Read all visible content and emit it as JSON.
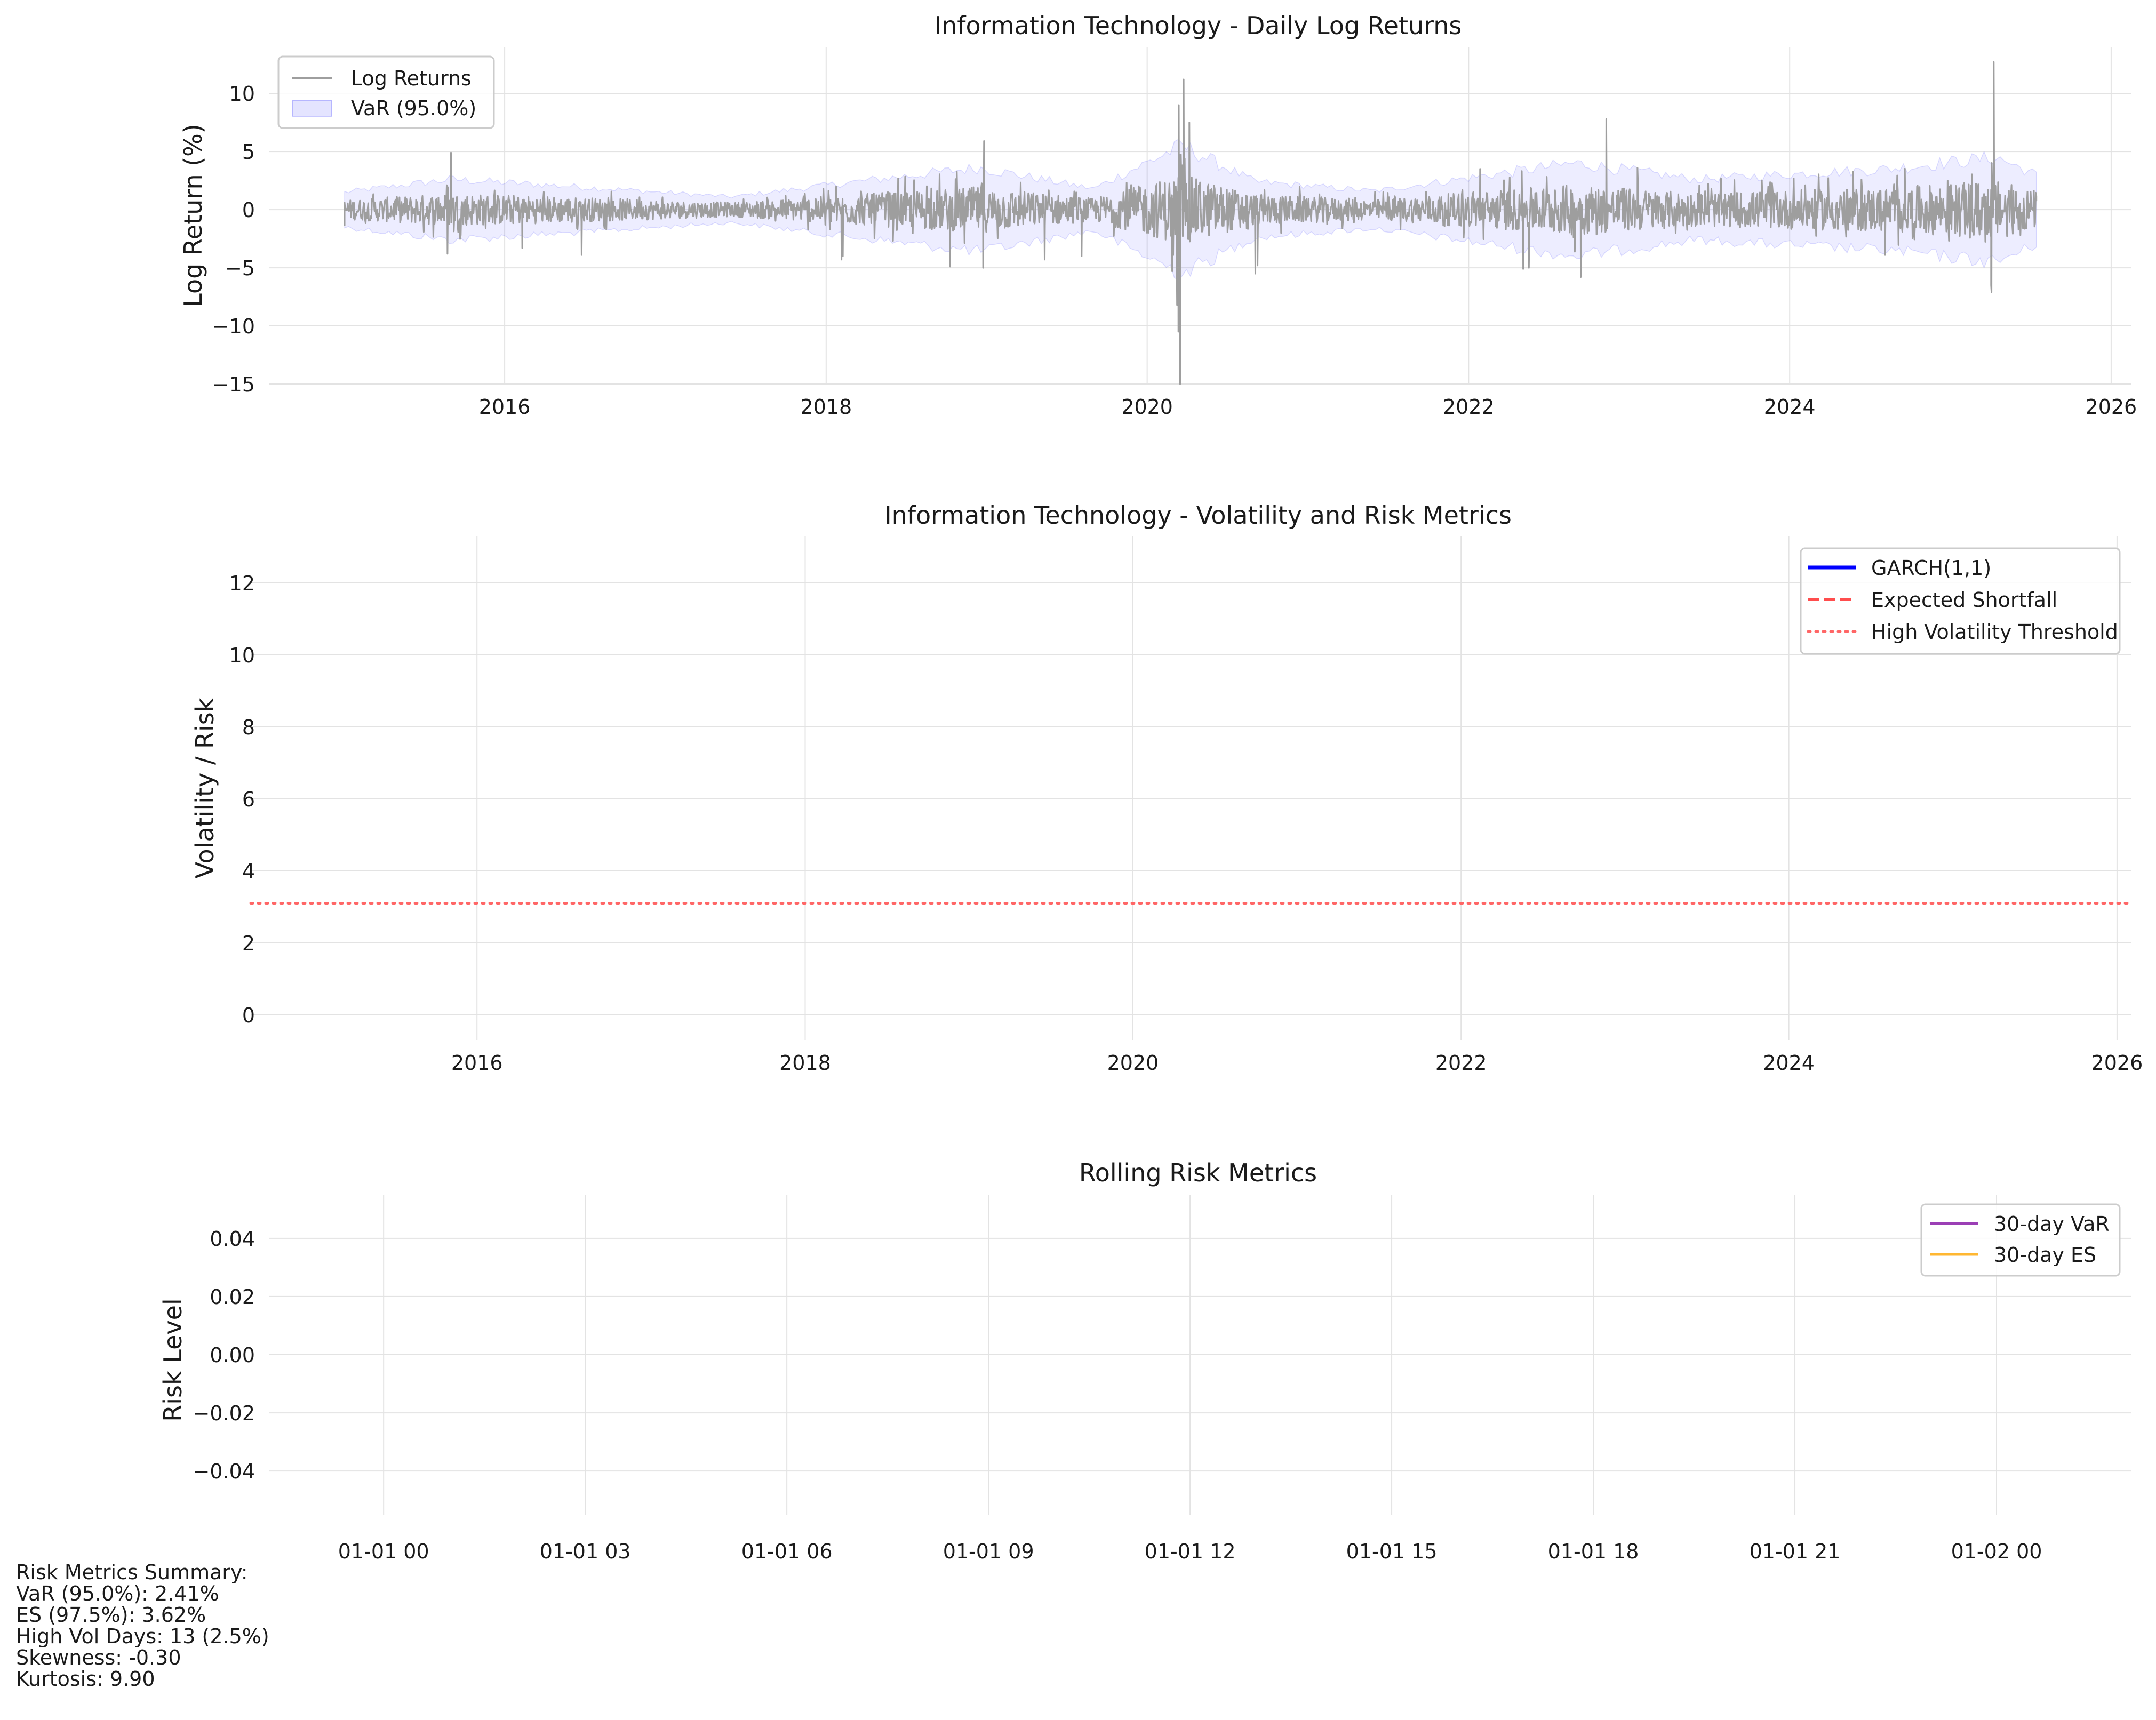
{
  "chart_data": [
    {
      "type": "line",
      "title": "Information Technology - Daily Log Returns",
      "xlabel": "",
      "ylabel": "Log Return (%)",
      "xlim": [
        "2014-07-15",
        "2026-02-15"
      ],
      "ylim": [
        -15,
        14
      ],
      "x_ticks": [
        "2016",
        "2018",
        "2020",
        "2022",
        "2024",
        "2026"
      ],
      "y_ticks": [
        10,
        5,
        0,
        -5,
        -10,
        -15
      ],
      "grid": true,
      "legend_position": "top-left",
      "series": [
        {
          "name": "Log Returns",
          "color": "#9e9e9e",
          "style": "line",
          "x": [
            "2015-01-02",
            "2015-08-24",
            "2015-09-01",
            "2016-02-10",
            "2016-06-24",
            "2018-02-05",
            "2018-02-08",
            "2018-10-10",
            "2018-12-24",
            "2018-12-26",
            "2019-05-13",
            "2019-08-05",
            "2020-02-27",
            "2020-03-09",
            "2020-03-12",
            "2020-03-13",
            "2020-03-16",
            "2020-03-24",
            "2020-04-06",
            "2020-09-03",
            "2020-09-08",
            "2022-01-27",
            "2022-05-05",
            "2022-05-18",
            "2022-09-13",
            "2022-11-10",
            "2023-01-20",
            "2024-08-05",
            "2025-04-03",
            "2025-04-04",
            "2025-04-09",
            "2025-07-15"
          ],
          "y": [
            -1.4,
            -3.8,
            4.9,
            -3.3,
            -3.9,
            -4.3,
            -4.0,
            -4.9,
            -5.0,
            5.9,
            -4.3,
            -4.0,
            -5.3,
            -8.2,
            -10.5,
            9.0,
            -15.0,
            11.2,
            7.5,
            -5.5,
            -4.8,
            3.5,
            -5.1,
            -5.0,
            -5.8,
            7.8,
            3.6,
            -3.9,
            -6.5,
            -7.1,
            12.7,
            0.8
          ]
        },
        {
          "name": "VaR (95.0%)",
          "color": "#4d4dff",
          "style": "band",
          "x": [
            "2015-01-02",
            "2015-09-01",
            "2016-06-01",
            "2017-06-01",
            "2018-02-15",
            "2018-12-15",
            "2019-09-01",
            "2020-03-20",
            "2020-09-01",
            "2021-06-01",
            "2022-09-01",
            "2023-06-01",
            "2024-08-15",
            "2025-04-15",
            "2025-07-15"
          ],
          "upper": [
            1.5,
            2.6,
            2.0,
            1.1,
            2.3,
            3.6,
            1.8,
            5.5,
            2.4,
            1.6,
            4.0,
            2.6,
            3.5,
            4.5,
            3.0
          ],
          "lower": [
            -1.5,
            -2.6,
            -2.0,
            -1.1,
            -2.3,
            -3.6,
            -1.8,
            -5.5,
            -2.4,
            -1.6,
            -4.0,
            -2.6,
            -3.5,
            -4.5,
            -3.0
          ]
        }
      ]
    },
    {
      "type": "line",
      "title": "Information Technology - Volatility and Risk Metrics",
      "xlabel": "",
      "ylabel": "Volatility / Risk",
      "xlim": [
        "2014-08-15",
        "2026-02-01"
      ],
      "ylim": [
        -0.7,
        13.3
      ],
      "x_ticks": [
        "2016",
        "2018",
        "2020",
        "2022",
        "2024",
        "2026"
      ],
      "y_ticks": [
        12,
        10,
        8,
        6,
        4,
        2,
        0
      ],
      "grid": true,
      "legend_position": "top-right",
      "series": [
        {
          "name": "GARCH(1,1)",
          "color": "#0000ff",
          "style": "solid",
          "values": []
        },
        {
          "name": "Expected Shortfall",
          "color": "#ff4d4d",
          "style": "dashed",
          "values": []
        },
        {
          "name": "High Volatility Threshold",
          "color": "#ff6666",
          "style": "dotted",
          "value": 3.1
        }
      ]
    },
    {
      "type": "line",
      "title": "Rolling Risk Metrics",
      "xlabel": "",
      "ylabel": "Risk Level",
      "xlim": [
        -1.7,
        26
      ],
      "ylim": [
        -0.055,
        0.055
      ],
      "x_ticks": [
        "01-01 00",
        "01-01 03",
        "01-01 06",
        "01-01 09",
        "01-01 12",
        "01-01 15",
        "01-01 18",
        "01-01 21",
        "01-02 00"
      ],
      "y_ticks": [
        "0.04",
        "0.02",
        "0.00",
        "−0.02",
        "−0.04"
      ],
      "grid": true,
      "legend_position": "top-right",
      "series": [
        {
          "name": "30-day VaR",
          "color": "#9b3fb5",
          "style": "solid",
          "values": []
        },
        {
          "name": "30-day ES",
          "color": "#ffb732",
          "style": "solid",
          "values": []
        }
      ]
    }
  ],
  "summary": {
    "heading": "Risk Metrics Summary:",
    "lines": [
      "VaR (95.0%): 2.41%",
      "ES (97.5%): 3.62%",
      "High Vol Days: 13 (2.5%)",
      "Skewness: -0.30",
      "Kurtosis: 9.90"
    ]
  }
}
